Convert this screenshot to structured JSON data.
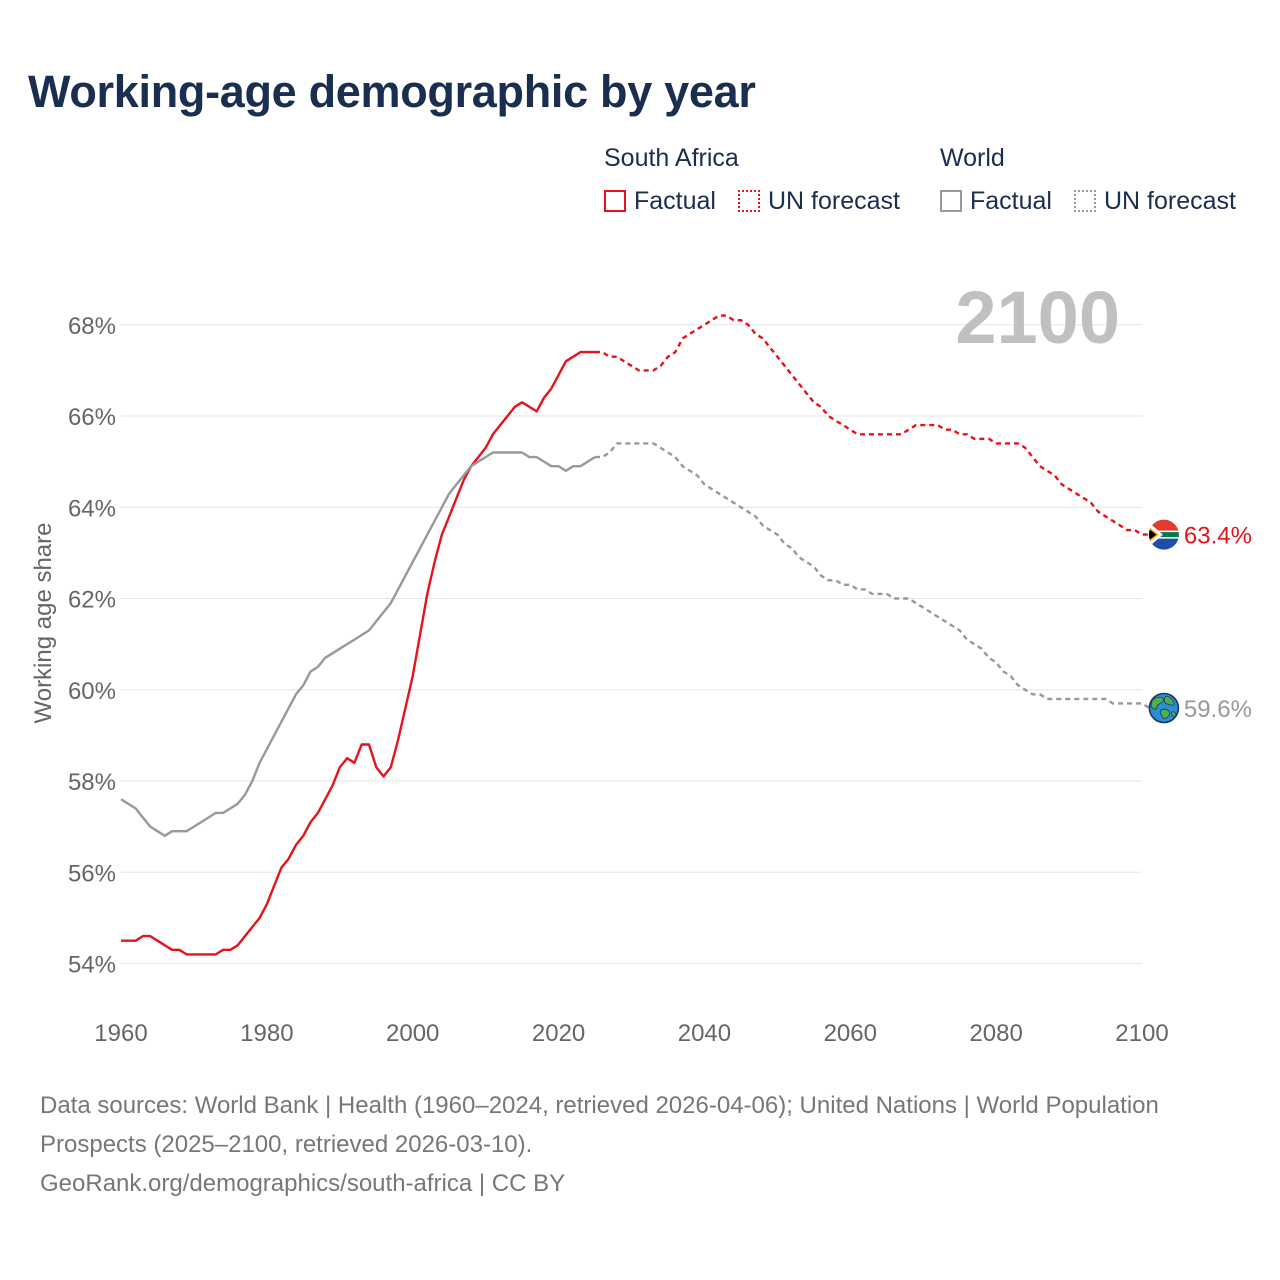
{
  "title": "Working-age demographic by year",
  "legend": {
    "groups": [
      {
        "name": "South Africa",
        "color": "#e8121b",
        "items": [
          {
            "label": "Factual",
            "style": "solid"
          },
          {
            "label": "UN forecast",
            "style": "dotted"
          }
        ]
      },
      {
        "name": "World",
        "color": "#999999",
        "items": [
          {
            "label": "Factual",
            "style": "solid"
          },
          {
            "label": "UN forecast",
            "style": "dotted"
          }
        ]
      }
    ]
  },
  "footer": {
    "sources": "Data sources: World Bank | Health (1960–2024, retrieved 2026-04-06); United Nations | World Population Prospects (2025–2100, retrieved 2026-03-10).",
    "credit": "GeoRank.org/demographics/south-africa | CC BY"
  },
  "chart_data": {
    "type": "line",
    "title": "Working-age demographic by year",
    "ylabel": "Working age share",
    "xlabel": "",
    "xlim": [
      1960,
      2100
    ],
    "ylim": [
      53.2,
      69.2
    ],
    "x_ticks": [
      1960,
      1980,
      2000,
      2020,
      2040,
      2060,
      2080,
      2100
    ],
    "y_ticks": [
      54,
      56,
      58,
      60,
      62,
      64,
      66,
      68
    ],
    "y_tick_labels": [
      "54%",
      "56%",
      "58%",
      "60%",
      "62%",
      "64%",
      "66%",
      "68%"
    ],
    "year_label": "2100",
    "grid": true,
    "forecast_start": 2025,
    "series": [
      {
        "name": "South Africa",
        "color": "#e8121b",
        "end_label": "63.4%",
        "marker_icon": "south-africa-flag-icon",
        "points": [
          [
            1960,
            54.5
          ],
          [
            1962,
            54.5
          ],
          [
            1963,
            54.6
          ],
          [
            1964,
            54.6
          ],
          [
            1965,
            54.5
          ],
          [
            1966,
            54.4
          ],
          [
            1967,
            54.3
          ],
          [
            1968,
            54.3
          ],
          [
            1969,
            54.2
          ],
          [
            1973,
            54.2
          ],
          [
            1974,
            54.3
          ],
          [
            1975,
            54.3
          ],
          [
            1976,
            54.4
          ],
          [
            1977,
            54.6
          ],
          [
            1978,
            54.8
          ],
          [
            1979,
            55.0
          ],
          [
            1980,
            55.3
          ],
          [
            1981,
            55.7
          ],
          [
            1982,
            56.1
          ],
          [
            1983,
            56.3
          ],
          [
            1984,
            56.6
          ],
          [
            1985,
            56.8
          ],
          [
            1986,
            57.1
          ],
          [
            1987,
            57.3
          ],
          [
            1988,
            57.6
          ],
          [
            1989,
            57.9
          ],
          [
            1990,
            58.3
          ],
          [
            1991,
            58.5
          ],
          [
            1992,
            58.4
          ],
          [
            1993,
            58.8
          ],
          [
            1994,
            58.8
          ],
          [
            1995,
            58.3
          ],
          [
            1996,
            58.1
          ],
          [
            1997,
            58.3
          ],
          [
            1998,
            58.9
          ],
          [
            1999,
            59.6
          ],
          [
            2000,
            60.3
          ],
          [
            2001,
            61.2
          ],
          [
            2002,
            62.1
          ],
          [
            2003,
            62.8
          ],
          [
            2004,
            63.4
          ],
          [
            2005,
            63.8
          ],
          [
            2006,
            64.2
          ],
          [
            2007,
            64.6
          ],
          [
            2008,
            64.9
          ],
          [
            2009,
            65.1
          ],
          [
            2010,
            65.3
          ],
          [
            2011,
            65.6
          ],
          [
            2012,
            65.8
          ],
          [
            2013,
            66.0
          ],
          [
            2014,
            66.2
          ],
          [
            2015,
            66.3
          ],
          [
            2016,
            66.2
          ],
          [
            2017,
            66.1
          ],
          [
            2018,
            66.4
          ],
          [
            2019,
            66.6
          ],
          [
            2020,
            66.9
          ],
          [
            2021,
            67.2
          ],
          [
            2022,
            67.3
          ],
          [
            2023,
            67.4
          ],
          [
            2024,
            67.4
          ],
          [
            2025,
            67.4
          ],
          [
            2026,
            67.4
          ],
          [
            2027,
            67.3
          ],
          [
            2028,
            67.3
          ],
          [
            2029,
            67.2
          ],
          [
            2030,
            67.1
          ],
          [
            2031,
            67.0
          ],
          [
            2032,
            67.0
          ],
          [
            2033,
            67.0
          ],
          [
            2034,
            67.1
          ],
          [
            2035,
            67.3
          ],
          [
            2036,
            67.4
          ],
          [
            2037,
            67.7
          ],
          [
            2038,
            67.8
          ],
          [
            2039,
            67.9
          ],
          [
            2040,
            68.0
          ],
          [
            2041,
            68.1
          ],
          [
            2042,
            68.2
          ],
          [
            2043,
            68.2
          ],
          [
            2044,
            68.1
          ],
          [
            2045,
            68.1
          ],
          [
            2046,
            68.0
          ],
          [
            2047,
            67.8
          ],
          [
            2048,
            67.7
          ],
          [
            2049,
            67.5
          ],
          [
            2050,
            67.3
          ],
          [
            2051,
            67.1
          ],
          [
            2052,
            66.9
          ],
          [
            2053,
            66.7
          ],
          [
            2054,
            66.5
          ],
          [
            2055,
            66.3
          ],
          [
            2056,
            66.2
          ],
          [
            2057,
            66.0
          ],
          [
            2058,
            65.9
          ],
          [
            2059,
            65.8
          ],
          [
            2060,
            65.7
          ],
          [
            2061,
            65.6
          ],
          [
            2067,
            65.6
          ],
          [
            2068,
            65.7
          ],
          [
            2069,
            65.8
          ],
          [
            2072,
            65.8
          ],
          [
            2073,
            65.7
          ],
          [
            2074,
            65.7
          ],
          [
            2075,
            65.6
          ],
          [
            2076,
            65.6
          ],
          [
            2077,
            65.5
          ],
          [
            2079,
            65.5
          ],
          [
            2080,
            65.4
          ],
          [
            2083,
            65.4
          ],
          [
            2084,
            65.3
          ],
          [
            2085,
            65.1
          ],
          [
            2086,
            64.9
          ],
          [
            2087,
            64.8
          ],
          [
            2088,
            64.7
          ],
          [
            2089,
            64.5
          ],
          [
            2090,
            64.4
          ],
          [
            2091,
            64.3
          ],
          [
            2092,
            64.2
          ],
          [
            2093,
            64.1
          ],
          [
            2094,
            63.9
          ],
          [
            2095,
            63.8
          ],
          [
            2096,
            63.7
          ],
          [
            2097,
            63.6
          ],
          [
            2098,
            63.5
          ],
          [
            2099,
            63.5
          ],
          [
            2100,
            63.4
          ],
          [
            2101,
            63.4
          ]
        ]
      },
      {
        "name": "World",
        "color": "#999999",
        "end_label": "59.6%",
        "marker_icon": "globe-icon",
        "points": [
          [
            1960,
            57.6
          ],
          [
            1961,
            57.5
          ],
          [
            1962,
            57.4
          ],
          [
            1963,
            57.2
          ],
          [
            1964,
            57.0
          ],
          [
            1965,
            56.9
          ],
          [
            1966,
            56.8
          ],
          [
            1967,
            56.9
          ],
          [
            1969,
            56.9
          ],
          [
            1970,
            57.0
          ],
          [
            1971,
            57.1
          ],
          [
            1972,
            57.2
          ],
          [
            1973,
            57.3
          ],
          [
            1974,
            57.3
          ],
          [
            1975,
            57.4
          ],
          [
            1976,
            57.5
          ],
          [
            1977,
            57.7
          ],
          [
            1978,
            58.0
          ],
          [
            1979,
            58.4
          ],
          [
            1980,
            58.7
          ],
          [
            1981,
            59.0
          ],
          [
            1982,
            59.3
          ],
          [
            1983,
            59.6
          ],
          [
            1984,
            59.9
          ],
          [
            1985,
            60.1
          ],
          [
            1986,
            60.4
          ],
          [
            1987,
            60.5
          ],
          [
            1988,
            60.7
          ],
          [
            1989,
            60.8
          ],
          [
            1990,
            60.9
          ],
          [
            1991,
            61.0
          ],
          [
            1992,
            61.1
          ],
          [
            1993,
            61.2
          ],
          [
            1994,
            61.3
          ],
          [
            1995,
            61.5
          ],
          [
            1996,
            61.7
          ],
          [
            1997,
            61.9
          ],
          [
            1998,
            62.2
          ],
          [
            1999,
            62.5
          ],
          [
            2000,
            62.8
          ],
          [
            2001,
            63.1
          ],
          [
            2002,
            63.4
          ],
          [
            2003,
            63.7
          ],
          [
            2004,
            64.0
          ],
          [
            2005,
            64.3
          ],
          [
            2006,
            64.5
          ],
          [
            2007,
            64.7
          ],
          [
            2008,
            64.9
          ],
          [
            2009,
            65.0
          ],
          [
            2010,
            65.1
          ],
          [
            2011,
            65.2
          ],
          [
            2015,
            65.2
          ],
          [
            2016,
            65.1
          ],
          [
            2017,
            65.1
          ],
          [
            2018,
            65.0
          ],
          [
            2019,
            64.9
          ],
          [
            2020,
            64.9
          ],
          [
            2021,
            64.8
          ],
          [
            2022,
            64.9
          ],
          [
            2023,
            64.9
          ],
          [
            2024,
            65.0
          ],
          [
            2025,
            65.1
          ],
          [
            2026,
            65.1
          ],
          [
            2027,
            65.2
          ],
          [
            2028,
            65.4
          ],
          [
            2033,
            65.4
          ],
          [
            2034,
            65.3
          ],
          [
            2035,
            65.2
          ],
          [
            2036,
            65.1
          ],
          [
            2037,
            64.9
          ],
          [
            2038,
            64.8
          ],
          [
            2039,
            64.7
          ],
          [
            2040,
            64.5
          ],
          [
            2041,
            64.4
          ],
          [
            2042,
            64.3
          ],
          [
            2043,
            64.2
          ],
          [
            2044,
            64.1
          ],
          [
            2045,
            64.0
          ],
          [
            2046,
            63.9
          ],
          [
            2047,
            63.8
          ],
          [
            2048,
            63.6
          ],
          [
            2049,
            63.5
          ],
          [
            2050,
            63.4
          ],
          [
            2051,
            63.2
          ],
          [
            2052,
            63.1
          ],
          [
            2053,
            62.9
          ],
          [
            2054,
            62.8
          ],
          [
            2055,
            62.7
          ],
          [
            2056,
            62.5
          ],
          [
            2057,
            62.4
          ],
          [
            2058,
            62.4
          ],
          [
            2059,
            62.3
          ],
          [
            2060,
            62.3
          ],
          [
            2061,
            62.2
          ],
          [
            2062,
            62.2
          ],
          [
            2063,
            62.1
          ],
          [
            2065,
            62.1
          ],
          [
            2066,
            62.0
          ],
          [
            2068,
            62.0
          ],
          [
            2069,
            61.9
          ],
          [
            2070,
            61.8
          ],
          [
            2071,
            61.7
          ],
          [
            2072,
            61.6
          ],
          [
            2073,
            61.5
          ],
          [
            2074,
            61.4
          ],
          [
            2075,
            61.3
          ],
          [
            2076,
            61.1
          ],
          [
            2077,
            61.0
          ],
          [
            2078,
            60.9
          ],
          [
            2079,
            60.7
          ],
          [
            2080,
            60.6
          ],
          [
            2081,
            60.4
          ],
          [
            2082,
            60.3
          ],
          [
            2083,
            60.1
          ],
          [
            2084,
            60.0
          ],
          [
            2085,
            59.9
          ],
          [
            2086,
            59.9
          ],
          [
            2087,
            59.8
          ],
          [
            2095,
            59.8
          ],
          [
            2096,
            59.7
          ],
          [
            2100,
            59.7
          ],
          [
            2101,
            59.6
          ],
          [
            2102,
            59.6
          ]
        ]
      }
    ]
  }
}
